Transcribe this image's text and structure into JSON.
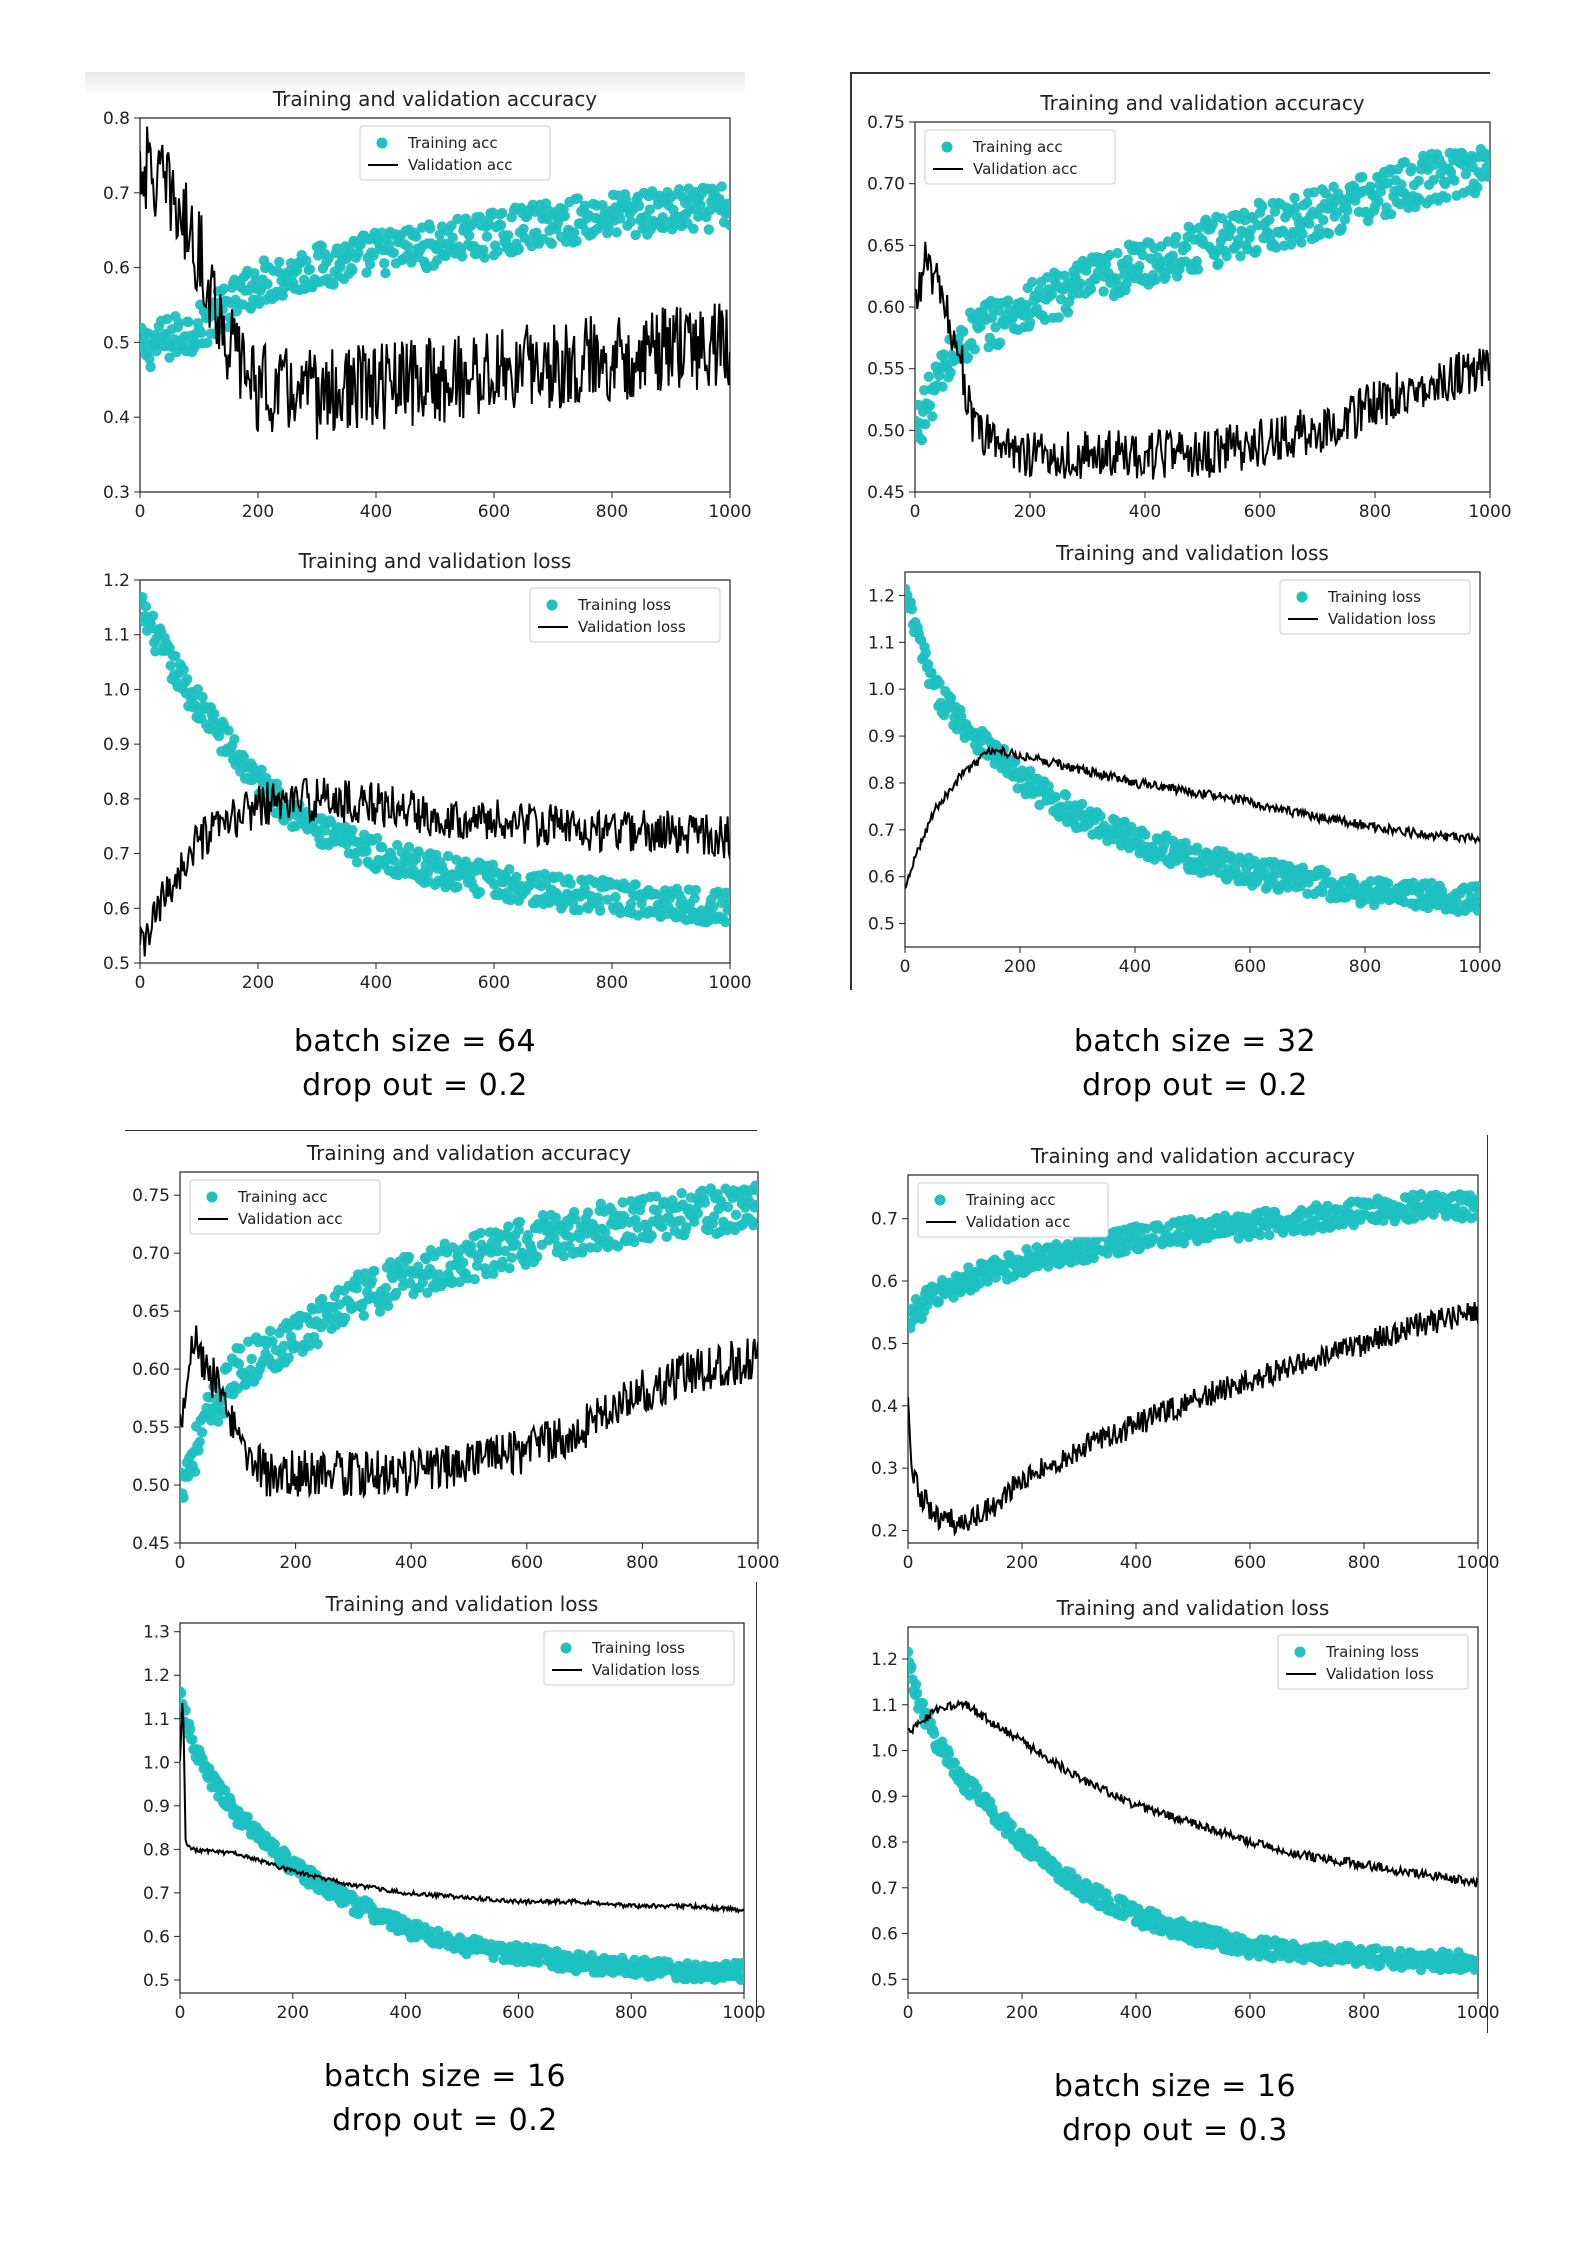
{
  "captions": [
    {
      "batch": "batch size = 64",
      "dropout": "drop out = 0.2"
    },
    {
      "batch": "batch size = 32",
      "dropout": "drop out = 0.2"
    },
    {
      "batch": "batch size = 16",
      "dropout": "drop out = 0.2"
    },
    {
      "batch": "batch size = 16",
      "dropout": "drop out = 0.3"
    }
  ],
  "colors": {
    "training": "#1ec0c0",
    "validation": "#000000"
  },
  "chart_data": [
    {
      "type": "scatter",
      "title": "Training and validation accuracy",
      "legend": [
        "Training acc",
        "Validation acc"
      ],
      "legend_position": "top-center",
      "xlim": [
        0,
        1000
      ],
      "ylim": [
        0.3,
        0.8
      ],
      "xticks": [
        0,
        200,
        400,
        600,
        800,
        1000
      ],
      "yticks": [
        0.3,
        0.4,
        0.5,
        0.6,
        0.7,
        0.8
      ],
      "ytick_labels": [
        "0.3",
        "0.4",
        "0.5",
        "0.6",
        "0.7",
        "0.8"
      ],
      "series": [
        {
          "name": "Training acc",
          "kind": "scatter",
          "x": [
            0,
            100,
            200,
            300,
            400,
            500,
            600,
            700,
            800,
            900,
            1000
          ],
          "y": [
            0.49,
            0.52,
            0.58,
            0.6,
            0.62,
            0.63,
            0.645,
            0.66,
            0.67,
            0.675,
            0.68
          ],
          "spread": 0.03
        },
        {
          "name": "Validation acc",
          "kind": "line",
          "x": [
            0,
            50,
            100,
            150,
            200,
            300,
            400,
            500,
            600,
            700,
            800,
            900,
            1000
          ],
          "y": [
            0.74,
            0.7,
            0.62,
            0.5,
            0.44,
            0.43,
            0.44,
            0.45,
            0.46,
            0.47,
            0.48,
            0.49,
            0.5
          ],
          "spread": 0.06
        }
      ]
    },
    {
      "type": "scatter",
      "title": "Training and validation loss",
      "legend": [
        "Training loss",
        "Validation loss"
      ],
      "legend_position": "top-right",
      "xlim": [
        0,
        1000
      ],
      "ylim": [
        0.5,
        1.2
      ],
      "xticks": [
        0,
        200,
        400,
        600,
        800,
        1000
      ],
      "yticks": [
        0.5,
        0.6,
        0.7,
        0.8,
        0.9,
        1.0,
        1.1,
        1.2
      ],
      "ytick_labels": [
        "0.5",
        "0.6",
        "0.7",
        "0.8",
        "0.9",
        "1.0",
        "1.1",
        "1.2"
      ],
      "series": [
        {
          "name": "Training loss",
          "kind": "scatter",
          "x": [
            0,
            50,
            100,
            200,
            300,
            400,
            500,
            600,
            700,
            800,
            900,
            1000
          ],
          "y": [
            1.15,
            1.05,
            0.97,
            0.83,
            0.74,
            0.7,
            0.67,
            0.65,
            0.63,
            0.62,
            0.61,
            0.6
          ],
          "spread": 0.03
        },
        {
          "name": "Validation loss",
          "kind": "line",
          "x": [
            0,
            50,
            100,
            200,
            300,
            400,
            500,
            600,
            700,
            800,
            900,
            1000
          ],
          "y": [
            0.52,
            0.64,
            0.72,
            0.79,
            0.8,
            0.79,
            0.77,
            0.76,
            0.75,
            0.74,
            0.74,
            0.73
          ],
          "spread": 0.04
        }
      ]
    },
    {
      "type": "scatter",
      "title": "Training and validation accuracy",
      "legend": [
        "Training acc",
        "Validation acc"
      ],
      "legend_position": "top-left",
      "xlim": [
        0,
        1000
      ],
      "ylim": [
        0.45,
        0.75
      ],
      "xticks": [
        0,
        200,
        400,
        600,
        800,
        1000
      ],
      "yticks": [
        0.45,
        0.5,
        0.55,
        0.6,
        0.65,
        0.7,
        0.75
      ],
      "ytick_labels": [
        "0.45",
        "0.50",
        "0.55",
        "0.60",
        "0.65",
        "0.70",
        "0.75"
      ],
      "series": [
        {
          "name": "Training acc",
          "kind": "scatter",
          "x": [
            0,
            50,
            100,
            200,
            300,
            400,
            500,
            600,
            700,
            800,
            900,
            1000
          ],
          "y": [
            0.5,
            0.55,
            0.58,
            0.6,
            0.62,
            0.635,
            0.65,
            0.665,
            0.675,
            0.69,
            0.705,
            0.715
          ],
          "spread": 0.02
        },
        {
          "name": "Validation acc",
          "kind": "line",
          "x": [
            0,
            20,
            50,
            80,
            100,
            200,
            300,
            400,
            500,
            600,
            700,
            800,
            900,
            1000
          ],
          "y": [
            0.6,
            0.64,
            0.6,
            0.56,
            0.5,
            0.48,
            0.48,
            0.48,
            0.48,
            0.49,
            0.5,
            0.52,
            0.54,
            0.55
          ],
          "spread": 0.02
        }
      ]
    },
    {
      "type": "scatter",
      "title": "Training and validation loss",
      "legend": [
        "Training loss",
        "Validation loss"
      ],
      "legend_position": "top-right",
      "xlim": [
        0,
        1000
      ],
      "ylim": [
        0.45,
        1.25
      ],
      "xticks": [
        0,
        200,
        400,
        600,
        800,
        1000
      ],
      "yticks": [
        0.5,
        0.6,
        0.7,
        0.8,
        0.9,
        1.0,
        1.1,
        1.2
      ],
      "ytick_labels": [
        "0.5",
        "0.6",
        "0.7",
        "0.8",
        "0.9",
        "1.0",
        "1.1",
        "1.2"
      ],
      "series": [
        {
          "name": "Training loss",
          "kind": "scatter",
          "x": [
            0,
            50,
            100,
            200,
            300,
            400,
            500,
            600,
            700,
            800,
            900,
            1000
          ],
          "y": [
            1.2,
            1.0,
            0.93,
            0.81,
            0.73,
            0.68,
            0.64,
            0.61,
            0.59,
            0.57,
            0.56,
            0.55
          ],
          "spread": 0.03
        },
        {
          "name": "Validation loss",
          "kind": "line",
          "x": [
            0,
            20,
            50,
            100,
            150,
            200,
            300,
            400,
            500,
            600,
            700,
            800,
            900,
            1000
          ],
          "y": [
            0.57,
            0.65,
            0.74,
            0.82,
            0.87,
            0.86,
            0.83,
            0.8,
            0.78,
            0.76,
            0.73,
            0.71,
            0.69,
            0.68
          ],
          "spread": 0.01
        }
      ]
    },
    {
      "type": "scatter",
      "title": "Training and validation accuracy",
      "legend": [
        "Training acc",
        "Validation acc"
      ],
      "legend_position": "top-left",
      "xlim": [
        0,
        1000
      ],
      "ylim": [
        0.45,
        0.77
      ],
      "xticks": [
        0,
        200,
        400,
        600,
        800,
        1000
      ],
      "yticks": [
        0.45,
        0.5,
        0.55,
        0.6,
        0.65,
        0.7,
        0.75
      ],
      "ytick_labels": [
        "0.45",
        "0.50",
        "0.55",
        "0.60",
        "0.65",
        "0.70",
        "0.75"
      ],
      "series": [
        {
          "name": "Training acc",
          "kind": "scatter",
          "x": [
            0,
            50,
            100,
            200,
            300,
            400,
            500,
            600,
            700,
            800,
            900,
            1000
          ],
          "y": [
            0.5,
            0.56,
            0.6,
            0.63,
            0.66,
            0.68,
            0.695,
            0.71,
            0.72,
            0.73,
            0.735,
            0.74
          ],
          "spread": 0.02
        },
        {
          "name": "Validation acc",
          "kind": "line",
          "x": [
            0,
            20,
            50,
            100,
            150,
            200,
            300,
            400,
            500,
            600,
            700,
            800,
            900,
            1000
          ],
          "y": [
            0.55,
            0.63,
            0.6,
            0.54,
            0.51,
            0.51,
            0.51,
            0.51,
            0.52,
            0.53,
            0.55,
            0.58,
            0.6,
            0.61
          ],
          "spread": 0.02
        }
      ]
    },
    {
      "type": "scatter",
      "title": "Training and validation loss",
      "legend": [
        "Training loss",
        "Validation loss"
      ],
      "legend_position": "top-right",
      "xlim": [
        0,
        1000
      ],
      "ylim": [
        0.47,
        1.32
      ],
      "xticks": [
        0,
        200,
        400,
        600,
        800,
        1000
      ],
      "yticks": [
        0.5,
        0.6,
        0.7,
        0.8,
        0.9,
        1.0,
        1.1,
        1.2,
        1.3
      ],
      "ytick_labels": [
        "0.5",
        "0.6",
        "0.7",
        "0.8",
        "0.9",
        "1.0",
        "1.1",
        "1.2",
        "1.3"
      ],
      "series": [
        {
          "name": "Training loss",
          "kind": "scatter",
          "x": [
            0,
            20,
            50,
            100,
            200,
            300,
            400,
            500,
            600,
            700,
            800,
            900,
            1000
          ],
          "y": [
            1.15,
            1.05,
            0.97,
            0.88,
            0.76,
            0.68,
            0.62,
            0.58,
            0.56,
            0.54,
            0.53,
            0.52,
            0.52
          ],
          "spread": 0.02
        },
        {
          "name": "Validation loss",
          "kind": "line",
          "x": [
            0,
            5,
            10,
            20,
            100,
            200,
            300,
            400,
            500,
            600,
            700,
            800,
            900,
            1000
          ],
          "y": [
            1.0,
            1.17,
            0.82,
            0.8,
            0.79,
            0.75,
            0.72,
            0.7,
            0.69,
            0.68,
            0.68,
            0.67,
            0.67,
            0.66
          ],
          "spread": 0.005
        }
      ]
    },
    {
      "type": "scatter",
      "title": "Training and validation accuracy",
      "legend": [
        "Training acc",
        "Validation acc"
      ],
      "legend_position": "top-left",
      "xlim": [
        0,
        1000
      ],
      "ylim": [
        0.18,
        0.77
      ],
      "xticks": [
        0,
        200,
        400,
        600,
        800,
        1000
      ],
      "yticks": [
        0.2,
        0.3,
        0.4,
        0.5,
        0.6,
        0.7
      ],
      "ytick_labels": [
        "0.2",
        "0.3",
        "0.4",
        "0.5",
        "0.6",
        "0.7"
      ],
      "series": [
        {
          "name": "Training acc",
          "kind": "scatter",
          "x": [
            0,
            50,
            100,
            200,
            300,
            400,
            500,
            600,
            700,
            800,
            900,
            1000
          ],
          "y": [
            0.54,
            0.58,
            0.6,
            0.63,
            0.65,
            0.67,
            0.68,
            0.69,
            0.7,
            0.71,
            0.72,
            0.72
          ],
          "spread": 0.02
        },
        {
          "name": "Validation acc",
          "kind": "line",
          "x": [
            0,
            5,
            20,
            50,
            100,
            150,
            200,
            300,
            400,
            500,
            600,
            700,
            800,
            900,
            1000
          ],
          "y": [
            0.4,
            0.3,
            0.26,
            0.22,
            0.21,
            0.24,
            0.28,
            0.33,
            0.37,
            0.41,
            0.44,
            0.47,
            0.5,
            0.53,
            0.55
          ],
          "spread": 0.02
        }
      ]
    },
    {
      "type": "scatter",
      "title": "Training and validation loss",
      "legend": [
        "Training loss",
        "Validation loss"
      ],
      "legend_position": "top-right",
      "xlim": [
        0,
        1000
      ],
      "ylim": [
        0.47,
        1.27
      ],
      "xticks": [
        0,
        200,
        400,
        600,
        800,
        1000
      ],
      "yticks": [
        0.5,
        0.6,
        0.7,
        0.8,
        0.9,
        1.0,
        1.1,
        1.2
      ],
      "ytick_labels": [
        "0.5",
        "0.6",
        "0.7",
        "0.8",
        "0.9",
        "1.0",
        "1.1",
        "1.2"
      ],
      "series": [
        {
          "name": "Training loss",
          "kind": "scatter",
          "x": [
            0,
            20,
            50,
            100,
            200,
            300,
            400,
            500,
            600,
            700,
            800,
            900,
            1000
          ],
          "y": [
            1.2,
            1.1,
            1.02,
            0.93,
            0.8,
            0.7,
            0.64,
            0.6,
            0.57,
            0.56,
            0.55,
            0.54,
            0.54
          ],
          "spread": 0.02
        },
        {
          "name": "Validation loss",
          "kind": "line",
          "x": [
            0,
            50,
            100,
            200,
            300,
            400,
            500,
            600,
            700,
            800,
            900,
            1000
          ],
          "y": [
            1.04,
            1.09,
            1.1,
            1.02,
            0.94,
            0.88,
            0.84,
            0.8,
            0.77,
            0.75,
            0.73,
            0.71
          ],
          "spread": 0.01
        }
      ]
    }
  ]
}
